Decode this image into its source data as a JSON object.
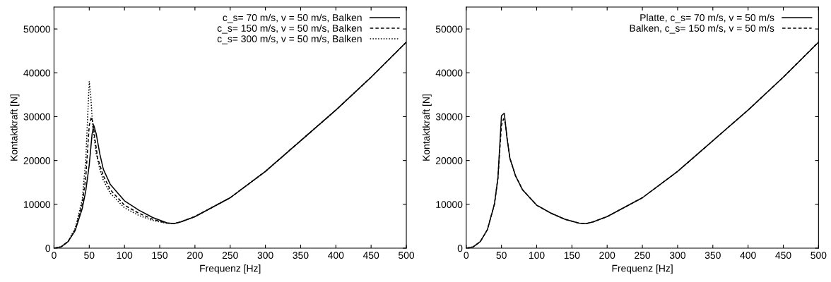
{
  "chart_data": [
    {
      "type": "line",
      "xlabel": "Frequenz [Hz]",
      "ylabel": "Kontaktkraft [N]",
      "xlim": [
        0,
        500
      ],
      "ylim": [
        0,
        55000
      ],
      "xticks": [
        0,
        50,
        100,
        150,
        200,
        250,
        300,
        350,
        400,
        450,
        500
      ],
      "yticks": [
        0,
        10000,
        20000,
        30000,
        40000,
        50000
      ],
      "grid": false,
      "legend": "top right",
      "series": [
        {
          "name": "c_s= 70 m/s, v = 50 m/s, Balken",
          "color": "#000000",
          "line_style": "solid",
          "x": [
            0,
            10,
            20,
            30,
            40,
            45,
            50,
            54,
            56.5,
            60,
            65,
            70,
            80,
            100,
            120,
            140,
            160,
            170,
            180,
            200,
            250,
            300,
            350,
            400,
            450,
            500
          ],
          "values": [
            0,
            300,
            1500,
            4000,
            9000,
            13000,
            19000,
            26000,
            28000,
            26000,
            21500,
            18000,
            14500,
            10800,
            8700,
            7000,
            5800,
            5600,
            6000,
            7200,
            11500,
            17500,
            24500,
            31500,
            39000,
            47000
          ]
        },
        {
          "name": "c_s= 150 m/s, v = 50 m/s, Balken",
          "color": "#000000",
          "line_style": "dashed",
          "x": [
            0,
            10,
            20,
            30,
            40,
            45,
            50,
            53,
            55.5,
            58,
            62,
            70,
            80,
            100,
            120,
            140,
            160,
            170,
            180,
            200,
            250,
            300,
            350,
            400,
            450,
            500
          ],
          "values": [
            0,
            300,
            1500,
            4200,
            10000,
            16000,
            28000,
            29900,
            28500,
            25000,
            20500,
            16500,
            13300,
            9800,
            8000,
            6600,
            5700,
            5600,
            6000,
            7200,
            11500,
            17500,
            24500,
            31500,
            39000,
            47000
          ]
        },
        {
          "name": "c_s= 300 m/s, v = 50 m/s, Balken",
          "color": "#000000",
          "line_style": "dotted",
          "x": [
            0,
            10,
            20,
            30,
            40,
            45,
            50,
            52,
            55,
            60,
            65,
            70,
            80,
            100,
            120,
            140,
            160,
            170,
            180,
            200,
            250,
            300,
            350,
            400,
            450,
            500
          ],
          "values": [
            0,
            300,
            1600,
            4500,
            11000,
            20000,
            38000,
            35000,
            27500,
            21500,
            18000,
            15500,
            12500,
            9200,
            7500,
            6300,
            5700,
            5600,
            6000,
            7200,
            11500,
            17500,
            24500,
            31500,
            39000,
            47000
          ]
        }
      ]
    },
    {
      "type": "line",
      "xlabel": "Frequenz [Hz]",
      "ylabel": "Kontaktkraft [N]",
      "xlim": [
        0,
        500
      ],
      "ylim": [
        0,
        55000
      ],
      "xticks": [
        0,
        50,
        100,
        150,
        200,
        250,
        300,
        350,
        400,
        450,
        500
      ],
      "yticks": [
        0,
        10000,
        20000,
        30000,
        40000,
        50000
      ],
      "grid": false,
      "legend": "top right",
      "series": [
        {
          "name": "Platte, c_s= 70 m/s, v = 50 m/s",
          "color": "#000000",
          "line_style": "solid",
          "x": [
            0,
            10,
            20,
            30,
            40,
            45,
            50,
            54,
            58,
            62,
            70,
            80,
            100,
            120,
            140,
            160,
            170,
            180,
            200,
            250,
            300,
            350,
            400,
            450,
            500
          ],
          "values": [
            0,
            300,
            1500,
            4200,
            10000,
            16000,
            30200,
            30800,
            25000,
            20500,
            16500,
            13300,
            9800,
            8000,
            6600,
            5700,
            5600,
            6000,
            7200,
            11500,
            17500,
            24500,
            31500,
            39000,
            47000
          ]
        },
        {
          "name": "Balken, c_s= 150 m/s, v = 50 m/s",
          "color": "#000000",
          "line_style": "dashed",
          "x": [
            0,
            10,
            20,
            30,
            40,
            45,
            50,
            53,
            55.5,
            58,
            62,
            70,
            80,
            100,
            120,
            140,
            160,
            170,
            180,
            200,
            250,
            300,
            350,
            400,
            450,
            500
          ],
          "values": [
            0,
            300,
            1500,
            4200,
            10000,
            16000,
            28000,
            29500,
            28500,
            25000,
            20500,
            16500,
            13300,
            9800,
            8000,
            6600,
            5700,
            5600,
            6000,
            7200,
            11500,
            17500,
            24500,
            31500,
            39000,
            47000
          ]
        }
      ]
    }
  ]
}
